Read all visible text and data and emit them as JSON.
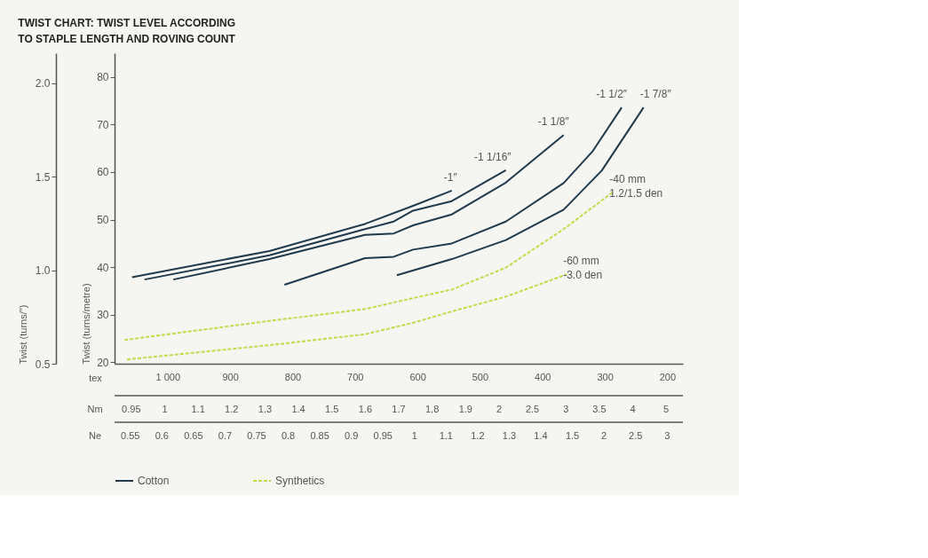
{
  "chart_data": {
    "type": "line",
    "title": "TWIST CHART: TWIST LEVEL ACCORDING\nTO STAPLE LENGTH AND ROVING COUNT",
    "xlabel": "tex",
    "ylabel": "Twist (turns/metre)",
    "y2label": "Twist (turns/″)",
    "xlim": [
      1085,
      175
    ],
    "xticks": [
      {
        "value": 1000,
        "label": "1 000"
      },
      900,
      800,
      700,
      600,
      500,
      400,
      300,
      200
    ],
    "ylim": [
      19.7,
      85
    ],
    "yticks": [
      20,
      30,
      40,
      50,
      60,
      70,
      80
    ],
    "y2lim": [
      0.5,
      2.16
    ],
    "y2ticks": [
      0.5,
      {
        "value": 1,
        "label": "1.0"
      },
      1.5,
      {
        "value": 2,
        "label": "2.0"
      }
    ],
    "grid": false,
    "legend": "bottom",
    "series": [
      {
        "name": "Cotton",
        "color": "#1f3a4d",
        "line_style": "solid",
        "x": [
          1057,
          837,
          684,
          607,
          545
        ],
        "values": [
          37.9,
          43.4,
          49.1,
          52.9,
          56.1
        ]
      },
      {
        "color": "#1f3a4d",
        "line_style": "solid",
        "x": [
          1037,
          837,
          684,
          638,
          607,
          545,
          458.5
        ],
        "values": [
          37.4,
          42.5,
          48.0,
          49.6,
          51.9,
          53.9,
          60.4
        ]
      },
      {
        "color": "#1f3a4d",
        "line_style": "solid",
        "x": [
          991,
          837,
          684,
          638,
          607,
          545,
          458.5,
          366
        ],
        "values": [
          37.4,
          41.7,
          46.8,
          47.1,
          48.8,
          51.1,
          57.8,
          67.8
        ]
      },
      {
        "color": "#1f3a4d",
        "line_style": "solid",
        "x": [
          813,
          684,
          638,
          607,
          545,
          458.5,
          366,
          320,
          273
        ],
        "values": [
          36.3,
          41.9,
          42.2,
          43.7,
          45.0,
          49.6,
          57.7,
          64.3,
          73.6
        ]
      },
      {
        "color": "#1f3a4d",
        "line_style": "solid",
        "x": [
          633,
          545,
          458.5,
          366,
          305,
          238
        ],
        "values": [
          38.3,
          41.7,
          45.7,
          52.1,
          60.3,
          73.6
        ]
      },
      {
        "name": "Synthetics",
        "color": "#c8d84a",
        "line_style": "dashed",
        "x": [
          1069,
          837,
          684,
          607,
          545,
          458.5,
          366,
          287
        ],
        "values": [
          24.7,
          28.7,
          31.2,
          33.5,
          35.3,
          39.9,
          48.0,
          55.8
        ]
      },
      {
        "color": "#c8d84a",
        "line_style": "dashed",
        "x": [
          1065,
          837,
          684,
          607,
          545,
          458.5,
          361
        ],
        "values": [
          20.6,
          23.6,
          25.9,
          28.3,
          30.7,
          33.8,
          38.5
        ]
      }
    ],
    "annotations": [
      {
        "text": "-1″",
        "x": 545,
        "y": 56.1
      },
      {
        "text": "-1 1/16″",
        "x": 458.5,
        "y": 60.4
      },
      {
        "text": "-1 1/8″",
        "x": 366,
        "y": 67.8
      },
      {
        "text": "-1 1/2″",
        "x": 273,
        "y": 73.6
      },
      {
        "text": "-1 7/8″",
        "x": 238,
        "y": 73.6
      },
      {
        "text": "-40 mm\n1.2/1.5 den",
        "x": 287,
        "y": 55.8
      },
      {
        "text": "-60 mm\n-3.0 den",
        "x": 361,
        "y": 38.5
      },
      "Nm 0.95 1 1.1 1.2 1.3 1.4 1.5 1.6 1.7 1.8 1.9 2 2.5 3 3.5 4 5",
      "Ne 0.55 0.6 0.65 0.7 0.75 0.8 0.85 0.9 0.95 1 1.1 1.2 1.3 1.4 1.5 2 2.5 3"
    ]
  }
}
